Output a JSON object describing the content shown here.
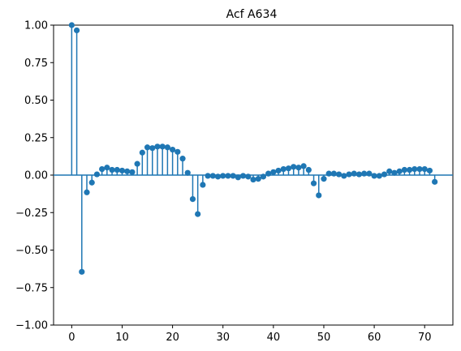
{
  "chart_data": {
    "type": "stem",
    "title": "Acf A634",
    "xlabel": "",
    "ylabel": "",
    "xlim": [
      -3.6,
      75.6
    ],
    "ylim": [
      -1.0,
      1.0
    ],
    "x_ticks": [
      0,
      10,
      20,
      30,
      40,
      50,
      60,
      70
    ],
    "y_ticks": [
      1.0,
      0.75,
      0.5,
      0.25,
      0.0,
      -0.25,
      -0.5,
      -0.75,
      -1.0
    ],
    "x_tick_labels": [
      "0",
      "10",
      "20",
      "30",
      "40",
      "50",
      "60",
      "70"
    ],
    "y_tick_labels": [
      "1.00",
      "0.75",
      "0.50",
      "0.25",
      "0.00",
      "−0.25",
      "−0.50",
      "−0.75",
      "−1.00"
    ],
    "grid": false,
    "color": "#1f77b4",
    "series": [
      {
        "x": [
          0,
          1,
          2,
          3,
          4,
          5,
          6,
          7,
          8,
          9,
          10,
          11,
          12,
          13,
          14,
          15,
          16,
          17,
          18,
          19,
          20,
          21,
          22,
          23,
          24,
          25,
          26,
          27,
          28,
          29,
          30,
          31,
          32,
          33,
          34,
          35,
          36,
          37,
          38,
          39,
          40,
          41,
          42,
          43,
          44,
          45,
          46,
          47,
          48,
          49,
          50,
          51,
          52,
          53,
          54,
          55,
          56,
          57,
          58,
          59,
          60,
          61,
          62,
          63,
          64,
          65,
          66,
          67,
          68,
          69,
          70,
          71,
          72
        ],
        "values": [
          1.0,
          0.965,
          -0.645,
          -0.115,
          -0.05,
          0.005,
          0.04,
          0.05,
          0.035,
          0.035,
          0.03,
          0.025,
          0.02,
          0.075,
          0.15,
          0.185,
          0.18,
          0.19,
          0.19,
          0.185,
          0.17,
          0.155,
          0.11,
          0.015,
          -0.16,
          -0.26,
          -0.065,
          -0.005,
          -0.005,
          -0.01,
          -0.005,
          -0.005,
          -0.005,
          -0.015,
          -0.005,
          -0.01,
          -0.03,
          -0.025,
          -0.01,
          0.01,
          0.02,
          0.03,
          0.04,
          0.045,
          0.055,
          0.05,
          0.06,
          0.035,
          -0.055,
          -0.135,
          -0.025,
          0.01,
          0.01,
          0.005,
          -0.005,
          0.005,
          0.01,
          0.005,
          0.01,
          0.01,
          -0.005,
          -0.005,
          0.005,
          0.025,
          0.015,
          0.025,
          0.035,
          0.035,
          0.04,
          0.04,
          0.04,
          0.03,
          -0.045
        ]
      }
    ]
  }
}
